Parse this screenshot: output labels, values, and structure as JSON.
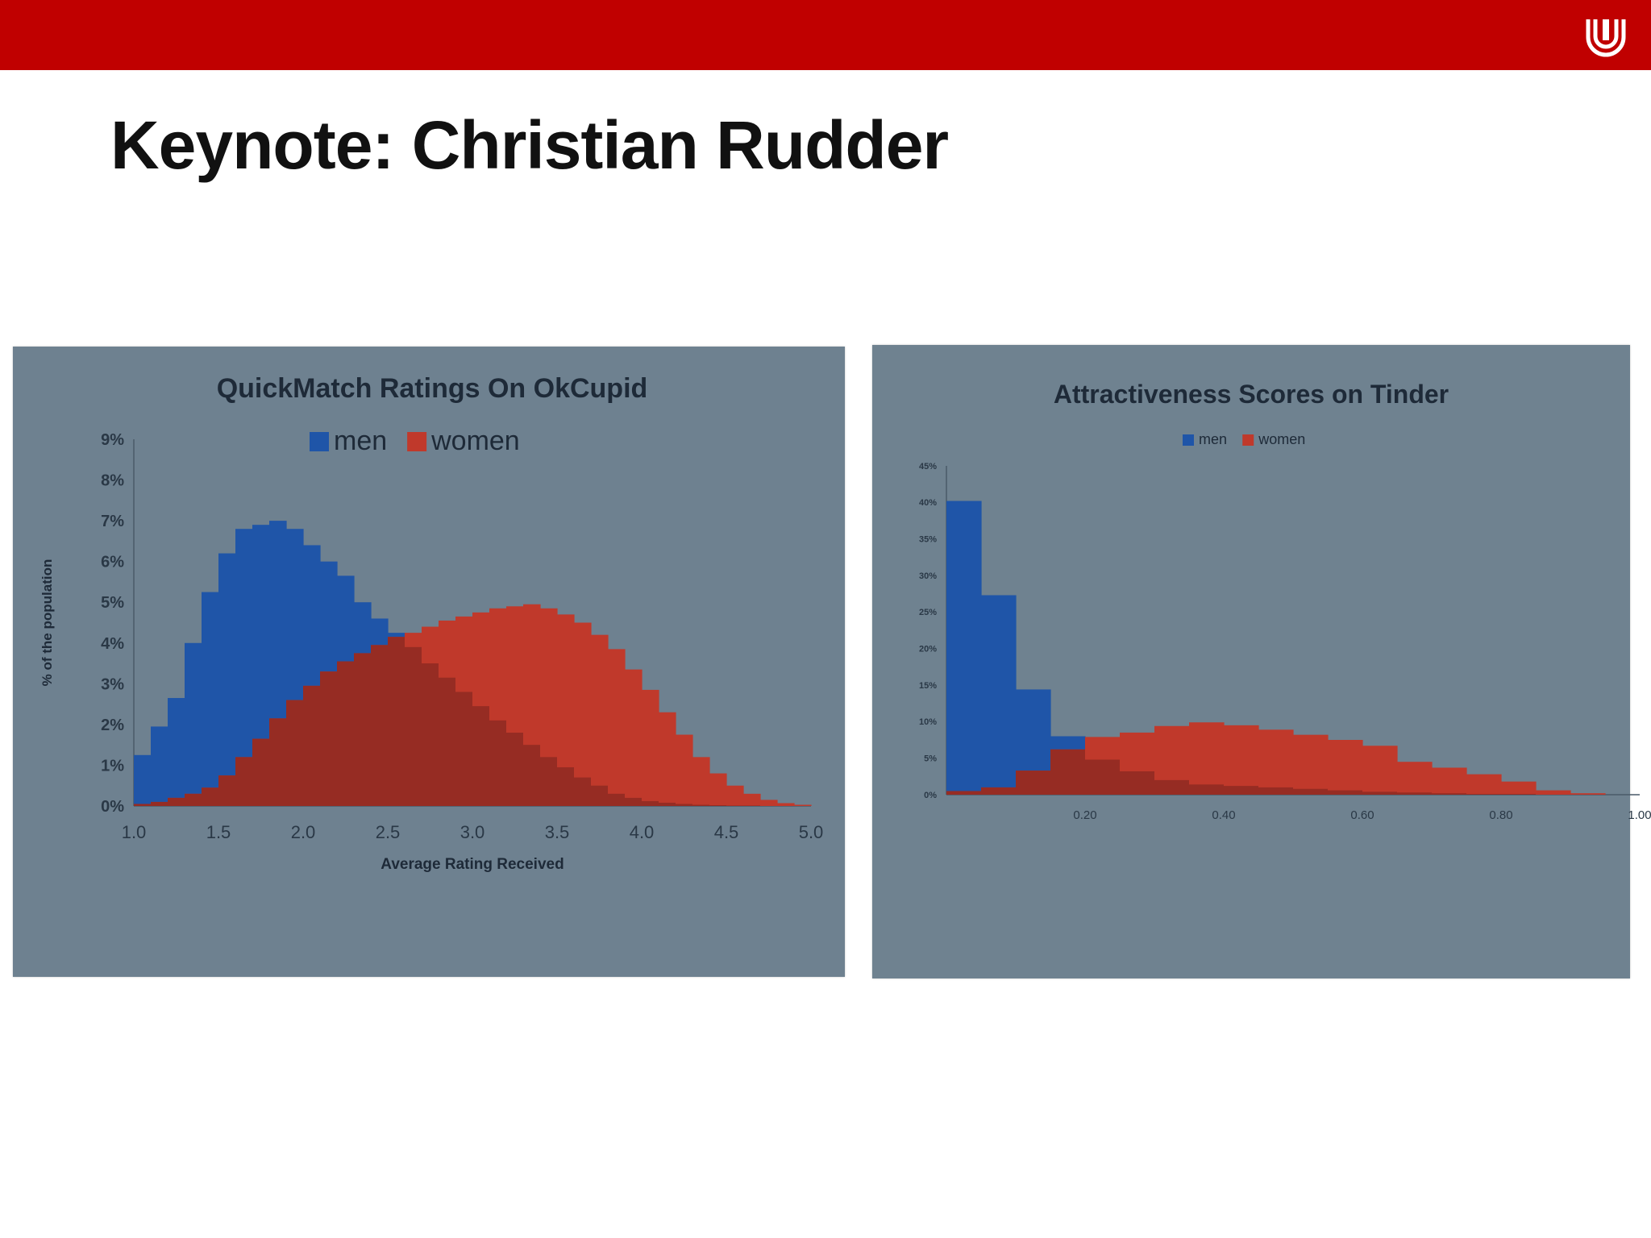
{
  "slide": {
    "title": "Keynote: Christian Rudder",
    "bar_color": "#c00000",
    "logo_icon": "university-u-logo"
  },
  "chart_data": [
    {
      "type": "bar",
      "title": "QuickMatch Ratings On OkCupid",
      "xlabel": "Average Rating Received",
      "ylabel": "% of the population",
      "xlim": [
        1.0,
        5.0
      ],
      "ylim": [
        0,
        9
      ],
      "x_ticks": [
        "1.0",
        "1.5",
        "2.0",
        "2.5",
        "3.0",
        "3.5",
        "4.0",
        "4.5",
        "5.0"
      ],
      "y_ticks": [
        "0%",
        "1%",
        "2%",
        "3%",
        "4%",
        "5%",
        "6%",
        "7%",
        "8%",
        "9%"
      ],
      "legend": "top-center",
      "grid": false,
      "bin_width": 0.1,
      "bins_start": 1.0,
      "background": "#6e8190",
      "series": [
        {
          "name": "men",
          "color": "#1f55a8",
          "values": [
            1.25,
            1.95,
            2.65,
            4.0,
            5.25,
            6.2,
            6.8,
            6.9,
            7.0,
            6.8,
            6.4,
            6.0,
            5.65,
            5.0,
            4.6,
            4.25,
            3.9,
            3.5,
            3.15,
            2.8,
            2.45,
            2.1,
            1.8,
            1.5,
            1.2,
            0.95,
            0.7,
            0.5,
            0.3,
            0.2,
            0.12,
            0.08,
            0.05,
            0.03,
            0.02,
            0.01,
            0.01,
            0.0,
            0.0,
            0.0
          ]
        },
        {
          "name": "women",
          "color": "#c0392b",
          "values": [
            0.05,
            0.1,
            0.2,
            0.3,
            0.45,
            0.75,
            1.2,
            1.65,
            2.15,
            2.6,
            2.95,
            3.3,
            3.55,
            3.75,
            3.95,
            4.15,
            4.25,
            4.4,
            4.55,
            4.65,
            4.75,
            4.85,
            4.9,
            4.95,
            4.85,
            4.7,
            4.5,
            4.2,
            3.85,
            3.35,
            2.85,
            2.3,
            1.75,
            1.2,
            0.8,
            0.5,
            0.3,
            0.15,
            0.07,
            0.03
          ]
        }
      ]
    },
    {
      "type": "bar",
      "title": "Attractiveness Scores on Tinder",
      "xlabel": "",
      "ylabel": "",
      "xlim": [
        0.0,
        1.0
      ],
      "ylim": [
        0,
        45
      ],
      "x_tick_values": [
        0.2,
        0.4,
        0.6,
        0.8,
        1.0
      ],
      "x_ticks": [
        "0.20",
        "0.40",
        "0.60",
        "0.80",
        "1.00"
      ],
      "y_ticks": [
        "0%",
        "5%",
        "10%",
        "15%",
        "20%",
        "25%",
        "30%",
        "35%",
        "40%",
        "45%"
      ],
      "legend": "top-center",
      "grid": false,
      "bin_width": 0.05,
      "bins_start": 0.0,
      "background": "#6f8290",
      "series": [
        {
          "name": "men",
          "color": "#1f55a8",
          "values": [
            40.2,
            27.3,
            14.4,
            8.0,
            4.8,
            3.2,
            2.0,
            1.4,
            1.2,
            1.0,
            0.8,
            0.6,
            0.4,
            0.3,
            0.2,
            0.1,
            0.1,
            0.0,
            0.0,
            0.0
          ]
        },
        {
          "name": "women",
          "color": "#c0392b",
          "values": [
            0.5,
            1.0,
            3.3,
            6.2,
            7.9,
            8.5,
            9.4,
            9.9,
            9.5,
            8.9,
            8.2,
            7.5,
            6.7,
            4.5,
            3.7,
            2.8,
            1.8,
            0.6,
            0.2,
            0.0
          ]
        }
      ]
    }
  ]
}
